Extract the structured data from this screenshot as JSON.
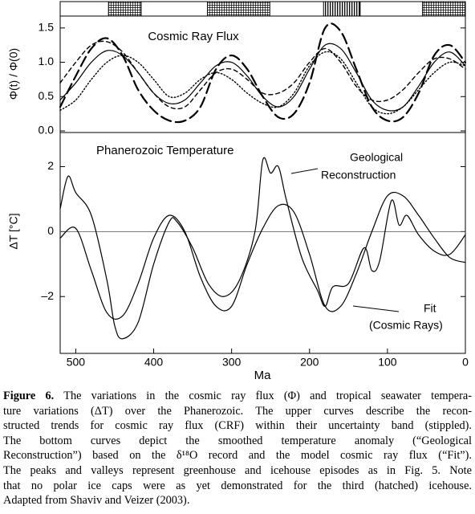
{
  "chart_data": [
    {
      "type": "line",
      "title": "Cosmic Ray Flux",
      "ylabel": "Φ(t) / Φ(0)",
      "xlim": [
        520,
        0
      ],
      "ylim": [
        0,
        1.65
      ],
      "yticks": [
        {
          "value": 0,
          "label": "0.0"
        },
        {
          "value": 0.5,
          "label": "0.5"
        },
        {
          "value": 1,
          "label": "1.0"
        },
        {
          "value": 1.5,
          "label": "1.5"
        }
      ],
      "bands": [
        {
          "start": 458,
          "end": 416,
          "hatch": "cross"
        },
        {
          "start": 331,
          "end": 251,
          "hatch": "cross"
        },
        {
          "start": 182,
          "end": 135,
          "hatch": "vertical"
        },
        {
          "start": 55,
          "end": 0,
          "hatch": "cross"
        }
      ],
      "series": [
        {
          "color": "#000000",
          "dash": "solid",
          "x": [
            520,
            500,
            480,
            460,
            440,
            420,
            400,
            380,
            360,
            340,
            320,
            300,
            280,
            260,
            240,
            220,
            200,
            180,
            160,
            140,
            120,
            100,
            80,
            60,
            40,
            20,
            0
          ],
          "values": [
            0.45,
            0.7,
            1.0,
            1.17,
            1.1,
            0.85,
            0.55,
            0.4,
            0.45,
            0.7,
            0.95,
            1.0,
            0.8,
            0.5,
            0.35,
            0.5,
            0.9,
            1.25,
            1.2,
            0.85,
            0.45,
            0.3,
            0.35,
            0.65,
            1.0,
            1.15,
            0.95
          ]
        },
        {
          "color": "#000000",
          "dash": "long",
          "x": [
            520,
            500,
            480,
            460,
            440,
            420,
            400,
            380,
            360,
            340,
            320,
            300,
            280,
            260,
            240,
            220,
            200,
            180,
            160,
            140,
            120,
            100,
            80,
            60,
            40,
            20,
            0
          ],
          "values": [
            0.35,
            0.8,
            1.2,
            1.35,
            1.1,
            0.6,
            0.3,
            0.15,
            0.15,
            0.35,
            0.9,
            1.1,
            0.9,
            0.5,
            0.2,
            0.25,
            0.7,
            1.5,
            1.45,
            0.9,
            0.35,
            0.15,
            0.2,
            0.55,
            1.1,
            1.25,
            1.0
          ]
        },
        {
          "color": "#000000",
          "dash": "short",
          "x": [
            520,
            500,
            480,
            460,
            440,
            420,
            400,
            380,
            360,
            340,
            320,
            300,
            280,
            260,
            240,
            220,
            200,
            180,
            160,
            140,
            120,
            100,
            80,
            60,
            40,
            20,
            0
          ],
          "values": [
            0.7,
            1.0,
            1.25,
            1.3,
            1.15,
            0.85,
            0.55,
            0.35,
            0.35,
            0.6,
            0.85,
            0.9,
            0.75,
            0.55,
            0.55,
            0.7,
            1.0,
            1.2,
            1.0,
            0.65,
            0.45,
            0.45,
            0.6,
            0.85,
            1.05,
            1.05,
            0.9
          ]
        },
        {
          "color": "#000000",
          "dash": "dotted",
          "x": [
            520,
            500,
            480,
            460,
            440,
            420,
            400,
            380,
            360,
            340,
            320,
            300,
            280,
            260,
            240,
            220,
            200,
            180,
            160,
            140,
            120,
            100,
            80,
            60,
            40,
            20,
            0
          ],
          "values": [
            0.3,
            0.45,
            0.75,
            1.0,
            1.1,
            1.0,
            0.75,
            0.5,
            0.55,
            0.75,
            0.85,
            0.75,
            0.55,
            0.4,
            0.35,
            0.55,
            0.95,
            1.15,
            1.05,
            0.7,
            0.35,
            0.25,
            0.35,
            0.6,
            0.85,
            1.0,
            0.95
          ]
        }
      ]
    },
    {
      "type": "line",
      "title": "Phanerozoic Temperature",
      "ylabel": "ΔT [°C]",
      "xlabel": "Ma",
      "xlim": [
        520,
        0
      ],
      "ylim": [
        -3.75,
        3.05
      ],
      "xticks": [
        500,
        400,
        300,
        200,
        100,
        0
      ],
      "yticks": [
        2,
        0,
        {
          "value": -2,
          "label": "–2"
        }
      ],
      "hline": 0,
      "annotations": [
        "Geological",
        "Reconstruction",
        "Fit",
        "(Cosmic Rays)"
      ],
      "series": [
        {
          "color": "#000000",
          "dash": "solid",
          "x": [
            520,
            510,
            500,
            480,
            460,
            450,
            440,
            420,
            400,
            380,
            370,
            350,
            330,
            310,
            290,
            270,
            260,
            250,
            240,
            230,
            210,
            190,
            180,
            170,
            150,
            130,
            120,
            110,
            95,
            85,
            75,
            60,
            40,
            20,
            0
          ],
          "values": [
            0.7,
            1.7,
            1.2,
            0.5,
            -1.5,
            -2.9,
            -3.3,
            -2.8,
            -1.0,
            0.3,
            0.3,
            -0.5,
            -1.6,
            -2.0,
            -1.5,
            0.0,
            2.2,
            1.8,
            2.0,
            1.0,
            -0.8,
            -1.8,
            -2.3,
            -1.7,
            -1.6,
            -0.5,
            -1.2,
            -0.9,
            0.95,
            0.2,
            0.5,
            -0.1,
            -0.6,
            -0.7,
            -0.1
          ]
        },
        {
          "color": "#000000",
          "dash": "solid",
          "x": [
            520,
            500,
            480,
            460,
            440,
            420,
            400,
            380,
            360,
            340,
            320,
            300,
            280,
            260,
            240,
            220,
            200,
            180,
            160,
            140,
            120,
            100,
            80,
            60,
            40,
            20,
            0
          ],
          "values": [
            -0.2,
            0.1,
            -1.2,
            -2.5,
            -2.6,
            -1.6,
            -0.2,
            0.5,
            0.0,
            -1.4,
            -2.3,
            -2.3,
            -1.0,
            0.1,
            0.8,
            0.6,
            -0.7,
            -2.3,
            -2.3,
            -1.3,
            0.0,
            1.1,
            1.1,
            0.5,
            -0.2,
            -0.8,
            -0.95
          ]
        }
      ]
    }
  ],
  "caption": {
    "label": "Figure 6.",
    "lines": [
      " The variations in the cosmic ray flux (Φ) and tropical seawater tempera-",
      "ture variations (ΔT) over the Phanerozoic. The upper curves describe the recon-",
      "structed trends for cosmic ray flux (CRF) within their uncertainty band (stippled).",
      "The bottom curves depict the smoothed temperature anomaly (“Geological",
      "Reconstruction”) based on the δ¹⁸O record and the model cosmic ray flux (“Fit”).",
      "The peaks and valleys represent greenhouse and icehouse episodes as in Fig. 5. Note",
      "that no polar ice caps were as yet demonstrated for the third (hatched) icehouse.",
      "Adapted from Shaviv and Veizer (2003)."
    ]
  }
}
